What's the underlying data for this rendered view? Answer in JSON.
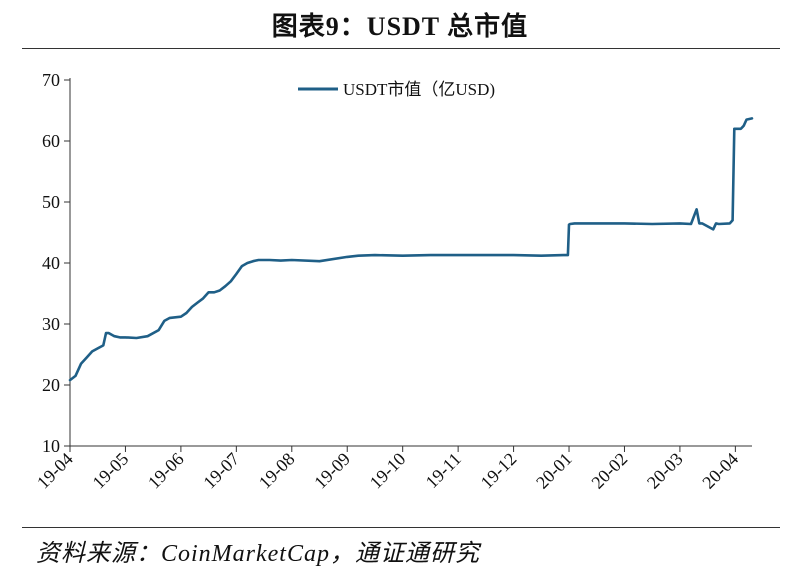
{
  "header": {
    "title": "图表9：USDT 总市值"
  },
  "footer": {
    "source": "资料来源：CoinMarketCap，通证通研究"
  },
  "colors": {
    "series": "#1f5f87",
    "axis": "#333333"
  },
  "chart_data": {
    "type": "line",
    "title": "图表9：USDT 总市值",
    "xlabel": "",
    "ylabel": "",
    "ylim": [
      10,
      70
    ],
    "yticks": [
      10,
      20,
      30,
      40,
      50,
      60,
      70
    ],
    "xlim": [
      0,
      12.3
    ],
    "x_tick_positions": [
      0,
      1,
      2,
      3,
      4,
      5,
      6,
      7,
      8,
      9,
      10,
      11,
      12
    ],
    "x_tick_labels": [
      "19-04",
      "19-05",
      "19-06",
      "19-07",
      "19-08",
      "19-09",
      "19-10",
      "19-11",
      "19-12",
      "20-01",
      "20-02",
      "20-03",
      "20-04"
    ],
    "legend": {
      "position": "top-center"
    },
    "series": [
      {
        "name": "USDT市值（亿USD)",
        "x": [
          0.0,
          0.1,
          0.2,
          0.3,
          0.4,
          0.5,
          0.6,
          0.65,
          0.7,
          0.8,
          0.9,
          1.0,
          1.2,
          1.4,
          1.6,
          1.7,
          1.8,
          2.0,
          2.1,
          2.2,
          2.3,
          2.4,
          2.5,
          2.6,
          2.7,
          2.8,
          2.9,
          3.0,
          3.1,
          3.2,
          3.3,
          3.4,
          3.6,
          3.8,
          4.0,
          4.5,
          5.0,
          5.2,
          5.5,
          6.0,
          6.5,
          7.0,
          7.5,
          8.0,
          8.5,
          8.9,
          8.98,
          9.0,
          9.02,
          9.1,
          9.5,
          10.0,
          10.5,
          11.0,
          11.2,
          11.3,
          11.35,
          11.4,
          11.6,
          11.65,
          11.7,
          11.9,
          11.95,
          11.98,
          12.1,
          12.15,
          12.2,
          12.3
        ],
        "values": [
          20.8,
          21.5,
          23.5,
          24.5,
          25.5,
          26.0,
          26.5,
          28.5,
          28.5,
          28.0,
          27.8,
          27.8,
          27.7,
          28.0,
          29.0,
          30.5,
          31.0,
          31.2,
          31.8,
          32.8,
          33.5,
          34.2,
          35.2,
          35.2,
          35.5,
          36.2,
          37.0,
          38.2,
          39.5,
          40.0,
          40.3,
          40.5,
          40.5,
          40.4,
          40.5,
          40.3,
          41.0,
          41.2,
          41.3,
          41.2,
          41.3,
          41.3,
          41.3,
          41.3,
          41.2,
          41.3,
          41.3,
          46.3,
          46.4,
          46.5,
          46.5,
          46.5,
          46.4,
          46.5,
          46.4,
          48.8,
          46.5,
          46.5,
          45.5,
          46.5,
          46.4,
          46.5,
          47.0,
          62.0,
          62.0,
          62.5,
          63.5,
          63.7
        ]
      }
    ]
  }
}
